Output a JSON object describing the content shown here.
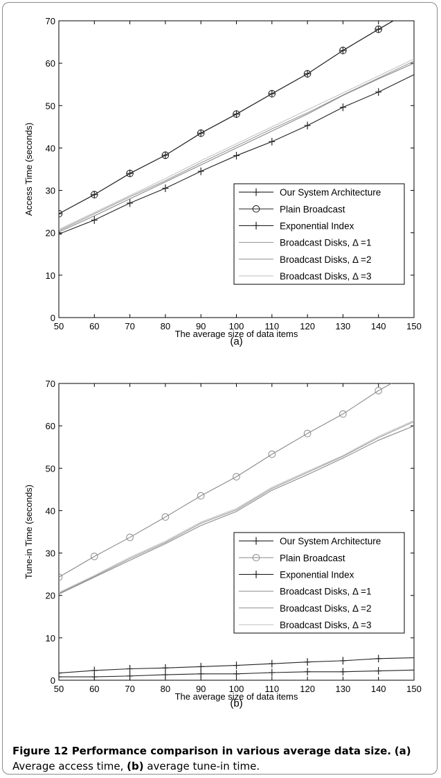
{
  "chart_data": [
    {
      "type": "line",
      "label": "(a)",
      "ylabel": "Access Time (seconds)",
      "xlabel": "The average size of data items",
      "xlim": [
        50,
        150
      ],
      "ylim": [
        0,
        70
      ],
      "xticks": [
        50,
        60,
        70,
        80,
        90,
        100,
        110,
        120,
        130,
        140,
        150
      ],
      "yticks": [
        0,
        10,
        20,
        30,
        40,
        50,
        60,
        70
      ],
      "grid": false,
      "legend_position": "lower-right",
      "x": [
        50,
        60,
        70,
        80,
        90,
        100,
        110,
        120,
        130,
        140,
        150
      ],
      "series": [
        {
          "name": "Our System Architecture",
          "marker": "plus",
          "color": "#222222",
          "values": [
            24.5,
            29,
            34,
            38.3,
            43.5,
            48,
            52.8,
            57.5,
            63,
            68,
            72.8
          ]
        },
        {
          "name": "Plain Broadcast",
          "marker": "circle",
          "color": "#222222",
          "values": [
            24.5,
            29,
            34,
            38.3,
            43.5,
            48,
            52.8,
            57.5,
            63,
            68,
            72.8
          ]
        },
        {
          "name": "Exponential Index",
          "marker": "plus",
          "color": "#222222",
          "values": [
            19.7,
            23,
            27,
            30.5,
            34.5,
            38.2,
            41.5,
            45.3,
            49.6,
            53.2,
            57.3
          ]
        },
        {
          "name": "Broadcast Disks, Δ =1",
          "marker": "none",
          "color": "#9a9a9a",
          "values": [
            20.5,
            24.5,
            28.5,
            32.3,
            36.5,
            40.5,
            44.5,
            48.3,
            52.5,
            56.5,
            60.5
          ]
        },
        {
          "name": "Broadcast Disks, Δ =2",
          "marker": "none",
          "color": "#8a8a8a",
          "values": [
            20.2,
            24,
            28,
            32,
            36,
            40,
            44,
            48,
            52.4,
            56.3,
            60
          ]
        },
        {
          "name": "Broadcast Disks, Δ =3",
          "marker": "none",
          "color": "#c4c4c4",
          "values": [
            20.8,
            24.8,
            28.8,
            32.8,
            37,
            41,
            45,
            49,
            53,
            57,
            61
          ]
        }
      ]
    },
    {
      "type": "line",
      "label": "(b)",
      "ylabel": "Tune-in Time (seconds)",
      "xlabel": "The average size of data items",
      "xlim": [
        50,
        150
      ],
      "ylim": [
        0,
        70
      ],
      "xticks": [
        50,
        60,
        70,
        80,
        90,
        100,
        110,
        120,
        130,
        140,
        150
      ],
      "yticks": [
        0,
        10,
        20,
        30,
        40,
        50,
        60,
        70
      ],
      "grid": false,
      "legend_position": "middle-right",
      "x": [
        50,
        60,
        70,
        80,
        90,
        100,
        110,
        120,
        130,
        140,
        150
      ],
      "series": [
        {
          "name": "Our System Architecture",
          "marker": "plus",
          "color": "#222222",
          "values": [
            0.8,
            0.8,
            1.0,
            1.3,
            1.5,
            1.5,
            1.8,
            2.0,
            2.0,
            2.2,
            2.4
          ]
        },
        {
          "name": "Plain Broadcast",
          "marker": "circle",
          "color": "#8a8a8a",
          "values": [
            24.3,
            29.2,
            33.7,
            38.5,
            43.5,
            48,
            53.3,
            58.2,
            62.8,
            68.3,
            73
          ]
        },
        {
          "name": "Exponential Index",
          "marker": "plus",
          "color": "#222222",
          "values": [
            1.7,
            2.3,
            2.7,
            2.9,
            3.2,
            3.5,
            3.9,
            4.3,
            4.6,
            5.1,
            5.3
          ]
        },
        {
          "name": "Broadcast Disks, Δ =1",
          "marker": "none",
          "color": "#9a9a9a",
          "values": [
            20.5,
            24.5,
            28.7,
            32.5,
            37,
            40.2,
            45.2,
            49,
            52.8,
            57.2,
            61
          ]
        },
        {
          "name": "Broadcast Disks, Δ =2",
          "marker": "none",
          "color": "#8a8a8a",
          "values": [
            20.3,
            24.3,
            28.3,
            32.2,
            36.5,
            39.8,
            44.8,
            48.5,
            52.4,
            56.6,
            60
          ]
        },
        {
          "name": "Broadcast Disks, Δ =3",
          "marker": "none",
          "color": "#c4c4c4",
          "values": [
            20.7,
            24.7,
            29,
            32.8,
            37.3,
            40.5,
            45.5,
            49.3,
            53,
            57.5,
            61.3
          ]
        }
      ]
    }
  ],
  "caption": {
    "prefix": "Figure 12 Performance comparison in various average data size.",
    "a_label": "(a)",
    "a_text": " Average access time, ",
    "b_label": "(b)",
    "b_text": " average tune-in time."
  }
}
